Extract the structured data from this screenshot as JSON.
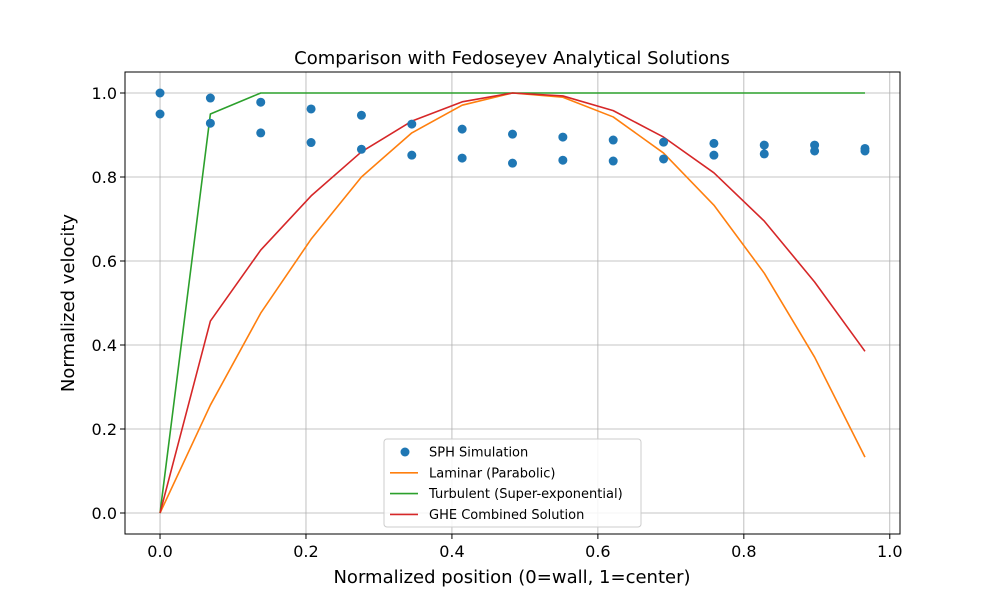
{
  "chart_data": {
    "type": "line",
    "title": "Comparison with Fedoseyev Analytical Solutions",
    "xlabel": "Normalized position (0=wall, 1=center)",
    "ylabel": "Normalized velocity",
    "xlim": [
      -0.048,
      1.014
    ],
    "ylim": [
      -0.05,
      1.05
    ],
    "xticks": [
      0.0,
      0.2,
      0.4,
      0.6,
      0.8,
      1.0
    ],
    "xtick_labels": [
      "0.0",
      "0.2",
      "0.4",
      "0.6",
      "0.8",
      "1.0"
    ],
    "yticks": [
      0.0,
      0.2,
      0.4,
      0.6,
      0.8,
      1.0
    ],
    "ytick_labels": [
      "0.0",
      "0.2",
      "0.4",
      "0.6",
      "0.8",
      "1.0"
    ],
    "grid": true,
    "legend_position": "bottom-center",
    "scatter": {
      "name": "SPH Simulation",
      "color": "#1f77b4",
      "points": [
        [
          0.0,
          1.0
        ],
        [
          0.0,
          0.95
        ],
        [
          0.069,
          0.988
        ],
        [
          0.069,
          0.928
        ],
        [
          0.138,
          0.978
        ],
        [
          0.138,
          0.905
        ],
        [
          0.207,
          0.962
        ],
        [
          0.207,
          0.882
        ],
        [
          0.276,
          0.947
        ],
        [
          0.276,
          0.866
        ],
        [
          0.345,
          0.926
        ],
        [
          0.345,
          0.852
        ],
        [
          0.414,
          0.914
        ],
        [
          0.414,
          0.845
        ],
        [
          0.483,
          0.902
        ],
        [
          0.483,
          0.833
        ],
        [
          0.552,
          0.895
        ],
        [
          0.552,
          0.84
        ],
        [
          0.621,
          0.888
        ],
        [
          0.621,
          0.838
        ],
        [
          0.69,
          0.883
        ],
        [
          0.69,
          0.843
        ],
        [
          0.759,
          0.88
        ],
        [
          0.759,
          0.852
        ],
        [
          0.828,
          0.876
        ],
        [
          0.828,
          0.855
        ],
        [
          0.897,
          0.876
        ],
        [
          0.897,
          0.862
        ],
        [
          0.966,
          0.868
        ],
        [
          0.966,
          0.862
        ]
      ]
    },
    "series": [
      {
        "name": "Laminar (Parabolic)",
        "color": "#ff7f0e",
        "x": [
          0.0,
          0.069,
          0.138,
          0.207,
          0.276,
          0.345,
          0.414,
          0.483,
          0.552,
          0.621,
          0.69,
          0.759,
          0.828,
          0.897,
          0.966
        ],
        "y": [
          0.0,
          0.257,
          0.476,
          0.652,
          0.8,
          0.905,
          0.971,
          1.0,
          0.99,
          0.943,
          0.857,
          0.733,
          0.571,
          0.371,
          0.133
        ]
      },
      {
        "name": "Turbulent (Super-exponential)",
        "color": "#2ca02c",
        "x": [
          0.0,
          0.069,
          0.138,
          0.207,
          0.276,
          0.345,
          0.414,
          0.483,
          0.552,
          0.621,
          0.69,
          0.759,
          0.828,
          0.897,
          0.966
        ],
        "y": [
          0.0,
          0.95,
          1.0,
          1.0,
          1.0,
          1.0,
          1.0,
          1.0,
          1.0,
          1.0,
          1.0,
          1.0,
          1.0,
          1.0,
          1.0
        ]
      },
      {
        "name": "GHE Combined Solution",
        "color": "#d62728",
        "x": [
          0.0,
          0.069,
          0.138,
          0.207,
          0.276,
          0.345,
          0.414,
          0.483,
          0.552,
          0.621,
          0.69,
          0.759,
          0.828,
          0.897,
          0.966
        ],
        "y": [
          0.0,
          0.457,
          0.626,
          0.755,
          0.86,
          0.933,
          0.979,
          1.0,
          0.993,
          0.958,
          0.895,
          0.81,
          0.695,
          0.55,
          0.385
        ]
      }
    ],
    "legend_order": [
      "SPH Simulation",
      "Laminar (Parabolic)",
      "Turbulent (Super-exponential)",
      "GHE Combined Solution"
    ]
  }
}
